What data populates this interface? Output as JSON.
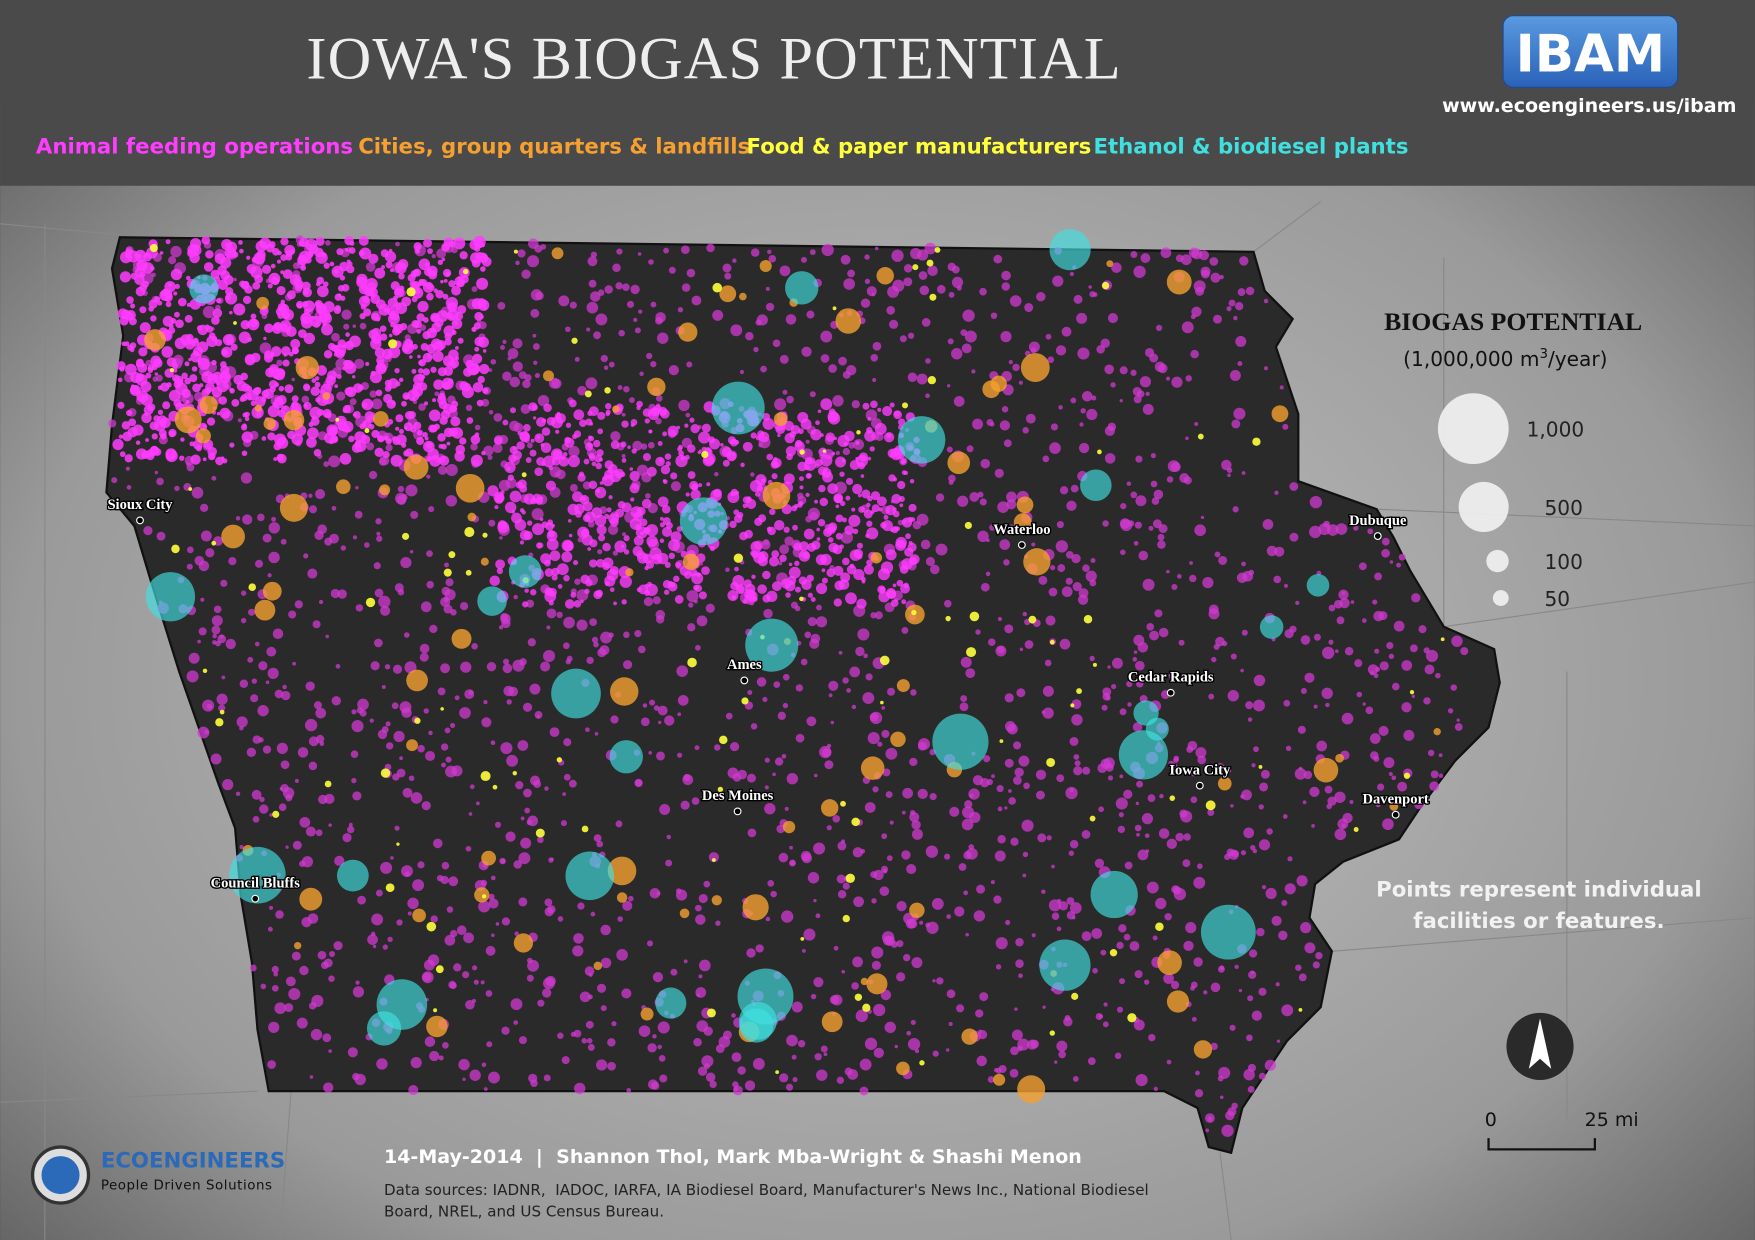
{
  "header": {
    "title": "IOWA'S BIOGAS POTENTIAL",
    "logo": "IBAM",
    "url": "www.ecoengineers.us/ibam"
  },
  "categories": [
    {
      "label": "Animal feeding operations",
      "color": "#ff3cff"
    },
    {
      "label": "Cities, group quarters & landfills",
      "color": "#f5a030"
    },
    {
      "label": "Food & paper manufacturers",
      "color": "#ffff3c"
    },
    {
      "label": "Ethanol & biodiesel plants",
      "color": "#40e0e0"
    }
  ],
  "cities": [
    "Sioux City",
    "Waterloo",
    "Dubuque",
    "Ames",
    "Cedar Rapids",
    "Iowa City",
    "Des Moines",
    "Davenport",
    "Council Bluffs"
  ],
  "size_legend": {
    "title": "BIOGAS POTENTIAL",
    "unit_prefix": "(1,000,000 m",
    "unit_sup": "3",
    "unit_suffix": "/year)",
    "sizes": [
      {
        "value": 1000,
        "label": "1,000"
      },
      500,
      100,
      50
    ]
  },
  "note": [
    "Points represent individual",
    "facilities or features."
  ],
  "scale_bar": {
    "start": "0",
    "end": "25 mi"
  },
  "footer": {
    "company": "ECOENGINEERS",
    "tagline": "People Driven Solutions",
    "credits": "14-May-2014  |  Shannon Thol, Mark Mba-Wright & Shashi Menon",
    "sources": [
      "Data sources: IADNR,  IADOC, IARFA, IA Biodiesel Board, Manufacturer's News Inc., National Biodiesel",
      "Board, NREL, and US Census Bureau."
    ]
  }
}
